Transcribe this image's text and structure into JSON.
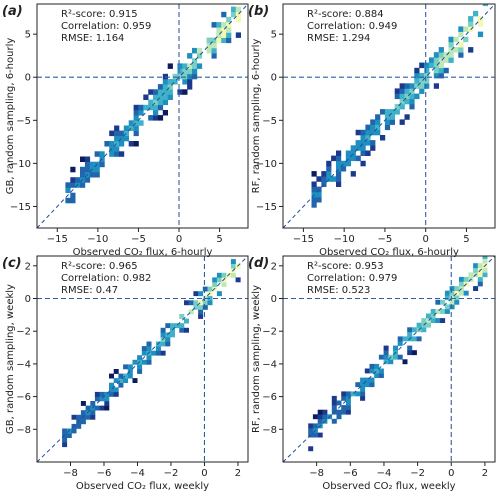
{
  "colors": {
    "diagonal": "#1f4e9c",
    "zero_lines": "#2f5fa8",
    "colormap": [
      "#0c1b5e",
      "#1c3a8c",
      "#2166ac",
      "#1f8fbf",
      "#3fb2c9",
      "#79cfc4",
      "#bfe8b9",
      "#f3fab0"
    ]
  },
  "chart_data": [
    {
      "type": "heatmap",
      "panel_label": "(a)",
      "xlabel": "Observed CO₂ flux, 6-hourly",
      "ylabel": "GB, random sampling, 6-hourly",
      "xlim": [
        -17.5,
        8.5
      ],
      "ylim": [
        -17.5,
        8.5
      ],
      "xticks": [
        -15,
        -10,
        -5,
        0,
        5
      ],
      "yticks": [
        -15,
        -10,
        -5,
        0,
        5
      ],
      "stats": [
        "R²-score: 0.915",
        "Correlation: 0.959",
        "RMSE: 1.164"
      ],
      "density": {
        "x_min": -14,
        "x_max": 7,
        "spread": 1.2,
        "cell": 0.6
      }
    },
    {
      "type": "heatmap",
      "panel_label": "(b)",
      "xlabel": "Observed CO₂ flux, 6-hourly",
      "ylabel": "RF, random sampling, 6-hourly",
      "xlim": [
        -17.5,
        8.5
      ],
      "ylim": [
        -17.5,
        8.5
      ],
      "xticks": [
        -15,
        -10,
        -5,
        0,
        5
      ],
      "yticks": [
        -15,
        -10,
        -5,
        0,
        5
      ],
      "stats": [
        "R²-score: 0.884",
        "Correlation: 0.949",
        "RMSE: 1.294"
      ],
      "density": {
        "x_min": -14,
        "x_max": 7,
        "spread": 1.3,
        "cell": 0.6
      }
    },
    {
      "type": "heatmap",
      "panel_label": "(c)",
      "xlabel": "Observed CO₂ flux, weekly",
      "ylabel": "GB, random sampling, weekly",
      "xlim": [
        -10,
        2.6
      ],
      "ylim": [
        -10,
        2.6
      ],
      "xticks": [
        -8,
        -6,
        -4,
        -2,
        0,
        2
      ],
      "yticks": [
        -8,
        -6,
        -4,
        -2,
        0,
        2
      ],
      "stats": [
        "R²-score: 0.965",
        "Correlation: 0.982",
        "RMSE: 0.47"
      ],
      "density": {
        "x_min": -8.5,
        "x_max": 2.0,
        "spread": 0.45,
        "cell": 0.28
      }
    },
    {
      "type": "heatmap",
      "panel_label": "(d)",
      "xlabel": "Observed CO₂ flux, weekly",
      "ylabel": "RF, random sampling, weekly",
      "xlim": [
        -10,
        2.6
      ],
      "ylim": [
        -10,
        2.6
      ],
      "xticks": [
        -8,
        -6,
        -4,
        -2,
        0,
        2
      ],
      "yticks": [
        -8,
        -6,
        -4,
        -2,
        0,
        2
      ],
      "stats": [
        "R²-score: 0.953",
        "Correlation: 0.979",
        "RMSE: 0.523"
      ],
      "density": {
        "x_min": -8.5,
        "x_max": 2.0,
        "spread": 0.5,
        "cell": 0.28
      }
    }
  ]
}
